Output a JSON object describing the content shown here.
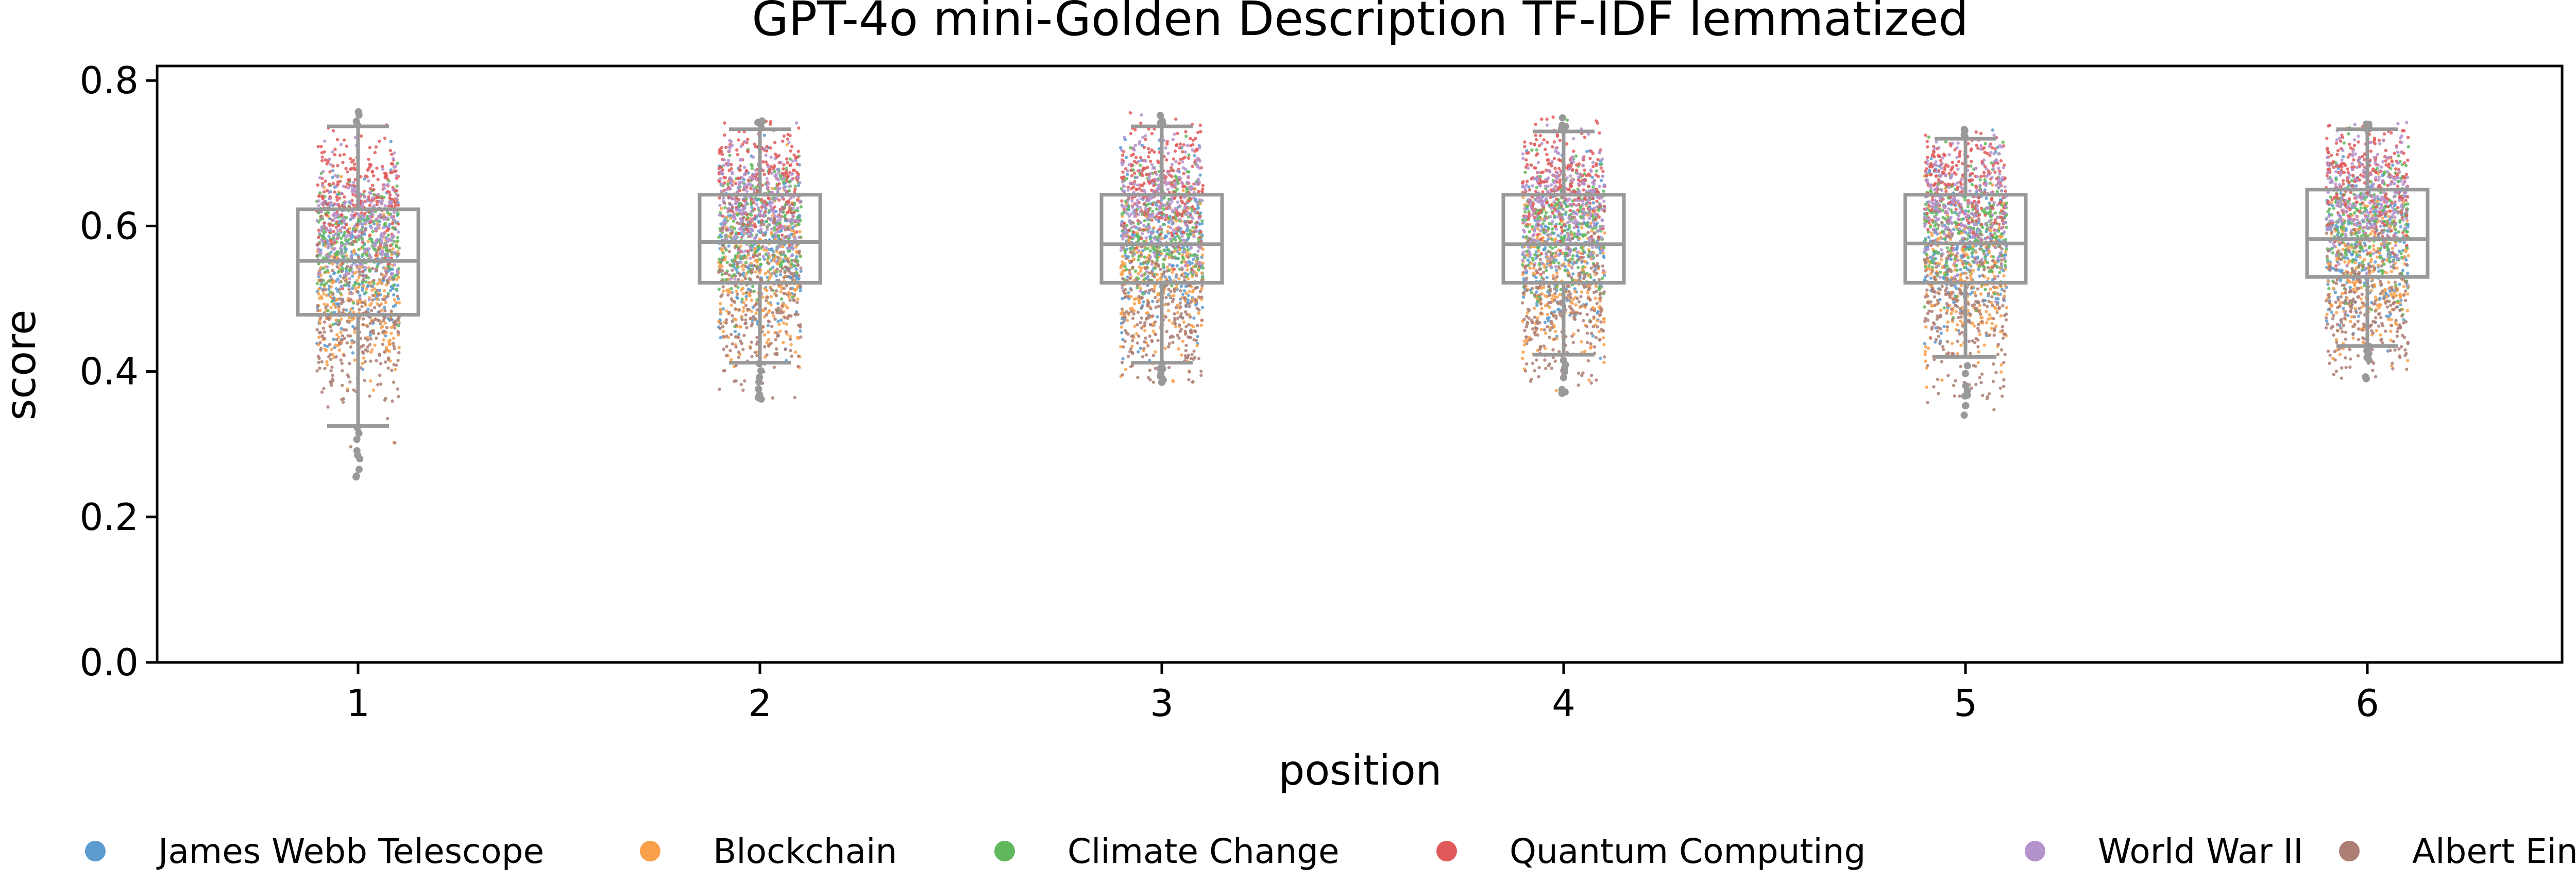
{
  "chart_data": {
    "type": "box",
    "title": "GPT-4o mini-Golden Description TF-IDF lemmatized",
    "xlabel": "position",
    "ylabel": "score",
    "ylim": [
      0.0,
      0.82
    ],
    "yticks": [
      "0.0",
      "0.2",
      "0.4",
      "0.6",
      "0.8"
    ],
    "categories": [
      "1",
      "2",
      "3",
      "4",
      "5",
      "6"
    ],
    "boxes": [
      {
        "category": "1",
        "q1": 0.478,
        "median": 0.552,
        "q3": 0.623,
        "whisker_low": 0.325,
        "whisker_high": 0.737,
        "min": 0.255,
        "max": 0.758
      },
      {
        "category": "2",
        "q1": 0.522,
        "median": 0.578,
        "q3": 0.643,
        "whisker_low": 0.412,
        "whisker_high": 0.733,
        "min": 0.362,
        "max": 0.745
      },
      {
        "category": "3",
        "q1": 0.522,
        "median": 0.575,
        "q3": 0.643,
        "whisker_low": 0.412,
        "whisker_high": 0.737,
        "min": 0.385,
        "max": 0.757
      },
      {
        "category": "4",
        "q1": 0.522,
        "median": 0.575,
        "q3": 0.643,
        "whisker_low": 0.423,
        "whisker_high": 0.73,
        "min": 0.37,
        "max": 0.75
      },
      {
        "category": "5",
        "q1": 0.522,
        "median": 0.576,
        "q3": 0.643,
        "whisker_low": 0.42,
        "whisker_high": 0.72,
        "min": 0.34,
        "max": 0.733
      },
      {
        "category": "6",
        "q1": 0.53,
        "median": 0.582,
        "q3": 0.65,
        "whisker_low": 0.435,
        "whisker_high": 0.733,
        "min": 0.39,
        "max": 0.745
      }
    ],
    "series": [
      {
        "name": "James Webb Telescope",
        "color": "#5b9bd0",
        "center": 0.57,
        "spread": 0.055
      },
      {
        "name": "Blockchain",
        "color": "#f9a04a",
        "center": 0.53,
        "spread": 0.055
      },
      {
        "name": "Climate Change",
        "color": "#5fb85c",
        "center": 0.6,
        "spread": 0.045
      },
      {
        "name": "Quantum Computing",
        "color": "#e05a5a",
        "center": 0.66,
        "spread": 0.04
      },
      {
        "name": "World War II",
        "color": "#b492cc",
        "center": 0.63,
        "spread": 0.045
      },
      {
        "name": "Albert Einstein",
        "color": "#ad7e74",
        "center": 0.49,
        "spread": 0.06
      }
    ],
    "legend": "bottom",
    "box_color": "#999999"
  }
}
